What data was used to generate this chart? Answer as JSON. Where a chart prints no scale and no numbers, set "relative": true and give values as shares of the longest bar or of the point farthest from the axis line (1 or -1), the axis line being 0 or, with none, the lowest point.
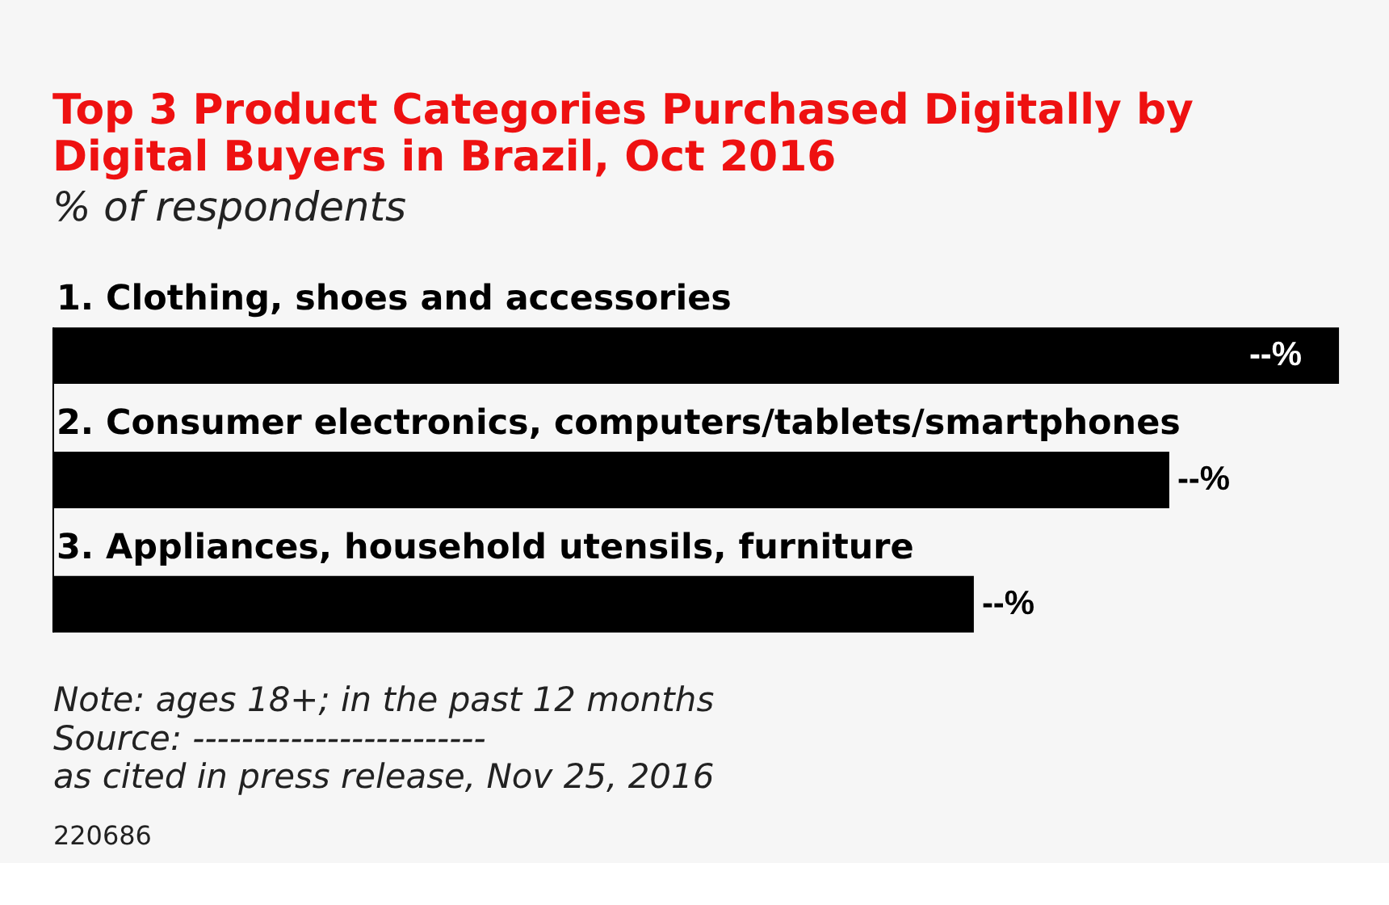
{
  "chart_data": {
    "type": "bar",
    "orientation": "horizontal",
    "relative": true,
    "title": "Top 3 Product Categories Purchased Digitally by Digital Buyers in Brazil, Oct 2016",
    "subtitle": "% of respondents",
    "categories": [
      "1. Clothing, shoes and accessories",
      "2. Consumer electronics, computers/tablets/smartphones",
      "3. Appliances, household utensils, furniture"
    ],
    "values": [
      1,
      0.868,
      0.716
    ],
    "color": "#000000",
    "annotations": [
      {
        "text": "--%",
        "x": 1,
        "y": "1. Clothing, shoes and accessories"
      },
      {
        "text": "--%",
        "x": 0.868,
        "y": "2. Consumer electronics, computers/tablets/smartphones"
      },
      {
        "text": "--%",
        "x": 0.716,
        "y": "3. Appliances, household utensils, furniture"
      },
      "Note: ages 18+; in the past 12 months",
      "Source: ------------------------",
      "as cited in press release, Nov 25, 2016",
      "220686"
    ]
  }
}
